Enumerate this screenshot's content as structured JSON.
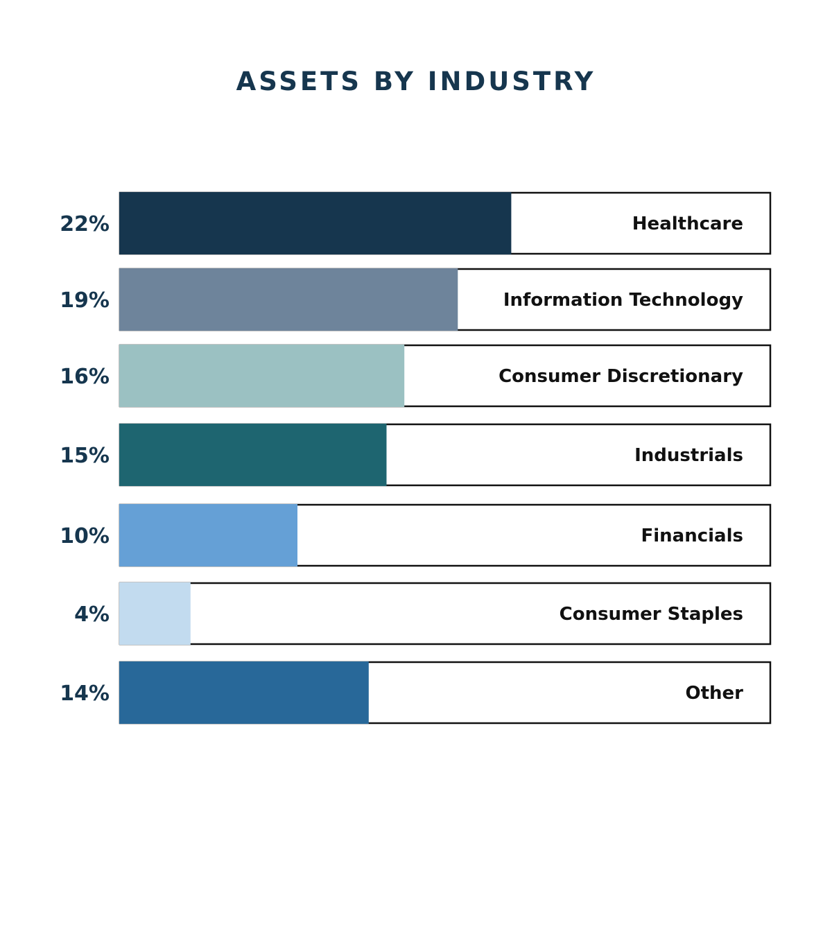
{
  "chart_data": {
    "type": "bar",
    "title": "ASSETS BY INDUSTRY",
    "orientation": "horizontal",
    "categories": [
      "Healthcare",
      "Information Technology",
      "Consumer Discretionary",
      "Industrials",
      "Financials",
      "Consumer Staples",
      "Other"
    ],
    "values": [
      22,
      19,
      16,
      15,
      10,
      4,
      14
    ],
    "value_labels": [
      "22%",
      "19%",
      "16%",
      "15%",
      "10%",
      "4%",
      "14%"
    ],
    "unit": "%",
    "colors": [
      "#16364e",
      "#6e849b",
      "#9bc1c2",
      "#1e6570",
      "#65a0d6",
      "#c2dbef",
      "#286899"
    ],
    "track_border_color": "#111111",
    "label_color": "#16364e"
  }
}
